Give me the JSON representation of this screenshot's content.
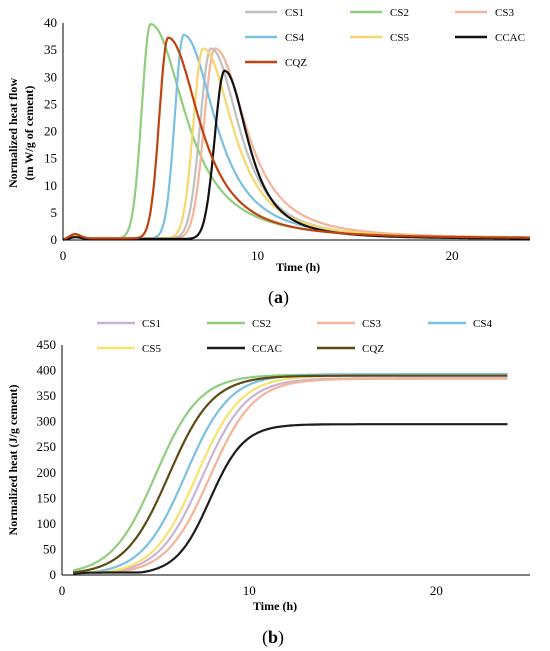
{
  "chart_data": [
    {
      "id": "a",
      "type": "line",
      "panel_label": "(a)",
      "panel_letter": "a",
      "title": "",
      "xlabel": "Time (h)",
      "ylabel_line1": "Normalized  heat flow",
      "ylabel_line2": "(m W/g of cement)",
      "xlim": [
        0,
        24
      ],
      "ylim": [
        0,
        40
      ],
      "x_ticks": [
        0,
        10,
        20
      ],
      "y_ticks": [
        0,
        5,
        10,
        15,
        20,
        25,
        30,
        35,
        40
      ],
      "grid": false,
      "legend_position": "top-right",
      "series": [
        {
          "name": "CS1",
          "color": "#c0c0c0",
          "peak_x": 7.6,
          "peak_y": 35,
          "width_left": 0.55,
          "decay": 1.8,
          "baseline": 0.3,
          "early_y": 0.5
        },
        {
          "name": "CS2",
          "color": "#8fce7f",
          "peak_x": 4.5,
          "peak_y": 39.5,
          "width_left": 0.45,
          "decay": 2.2,
          "baseline": 0.3,
          "early_y": 0.5
        },
        {
          "name": "CS3",
          "color": "#f4b49a",
          "peak_x": 7.8,
          "peak_y": 35,
          "width_left": 0.55,
          "decay": 2.0,
          "baseline": 0.3,
          "early_y": 0.5
        },
        {
          "name": "CS4",
          "color": "#7bc0e0",
          "peak_x": 6.2,
          "peak_y": 37.5,
          "width_left": 0.45,
          "decay": 2.0,
          "baseline": 0.3,
          "early_y": 0.5
        },
        {
          "name": "CS5",
          "color": "#f7d66c",
          "peak_x": 7.2,
          "peak_y": 35,
          "width_left": 0.5,
          "decay": 1.9,
          "baseline": 0.3,
          "early_y": 0.5
        },
        {
          "name": "CCAC",
          "color": "#111111",
          "peak_x": 8.3,
          "peak_y": 31,
          "width_left": 0.5,
          "decay": 1.5,
          "baseline": 0.2,
          "early_y": 0.4
        },
        {
          "name": "CQZ",
          "color": "#c0420f",
          "peak_x": 5.4,
          "peak_y": 37,
          "width_left": 0.45,
          "decay": 2.0,
          "baseline": 0.3,
          "early_y": 0.9
        }
      ]
    },
    {
      "id": "b",
      "type": "line",
      "panel_label": "(b)",
      "panel_letter": "b",
      "title": "",
      "xlabel": "Time (h)",
      "ylabel": "Normalized  heat (J/g cement)",
      "xlim": [
        0,
        25
      ],
      "ylim": [
        0,
        450
      ],
      "x_ticks": [
        0,
        10,
        20
      ],
      "y_ticks": [
        0,
        50,
        100,
        150,
        200,
        250,
        300,
        350,
        400,
        450
      ],
      "grid": false,
      "legend_position": "top",
      "series": [
        {
          "name": "CS1",
          "color": "#c9b3d6",
          "final": 385,
          "mid_x": 7.5,
          "steep": 0.85,
          "early": 6
        },
        {
          "name": "CS2",
          "color": "#8fce7f",
          "final": 392,
          "mid_x": 5.0,
          "steep": 0.85,
          "early": 6
        },
        {
          "name": "CS3",
          "color": "#f4b49a",
          "final": 384,
          "mid_x": 7.9,
          "steep": 0.85,
          "early": 6
        },
        {
          "name": "CS4",
          "color": "#7bc0e0",
          "final": 393,
          "mid_x": 6.6,
          "steep": 0.85,
          "early": 6
        },
        {
          "name": "CS5",
          "color": "#f7e36c",
          "final": 390,
          "mid_x": 7.2,
          "steep": 0.85,
          "early": 6
        },
        {
          "name": "CCAC",
          "color": "#1c1c1c",
          "final": 295,
          "mid_x": 7.9,
          "steep": 1.1,
          "early": 5
        },
        {
          "name": "CQZ",
          "color": "#5c4a14",
          "final": 390,
          "mid_x": 5.7,
          "steep": 0.85,
          "early": 7
        }
      ]
    }
  ]
}
